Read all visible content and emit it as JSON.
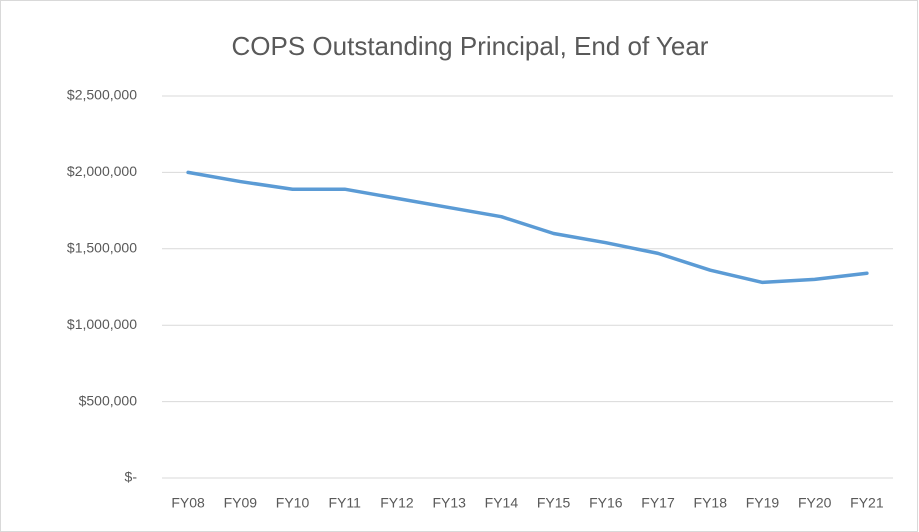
{
  "chart_data": {
    "type": "line",
    "title": "COPS Outstanding Principal, End of Year",
    "categories": [
      "FY08",
      "FY09",
      "FY10",
      "FY11",
      "FY12",
      "FY13",
      "FY14",
      "FY15",
      "FY16",
      "FY17",
      "FY18",
      "FY19",
      "FY20",
      "FY21"
    ],
    "series": [
      {
        "name": "COPS Outstanding Principal",
        "color": "#5b9bd5",
        "values": [
          2000000,
          1940000,
          1890000,
          1890000,
          1830000,
          1770000,
          1710000,
          1600000,
          1540000,
          1470000,
          1360000,
          1280000,
          1300000,
          1340000
        ]
      }
    ],
    "ylim": [
      0,
      2500000
    ],
    "yticks": [
      {
        "value": 0,
        "label": "$-"
      },
      {
        "value": 500000,
        "label": "$500,000"
      },
      {
        "value": 1000000,
        "label": "$1,000,000"
      },
      {
        "value": 1500000,
        "label": "$1,500,000"
      },
      {
        "value": 2000000,
        "label": "$2,000,000"
      },
      {
        "value": 2500000,
        "label": "$2,500,000"
      }
    ],
    "grid": true
  }
}
